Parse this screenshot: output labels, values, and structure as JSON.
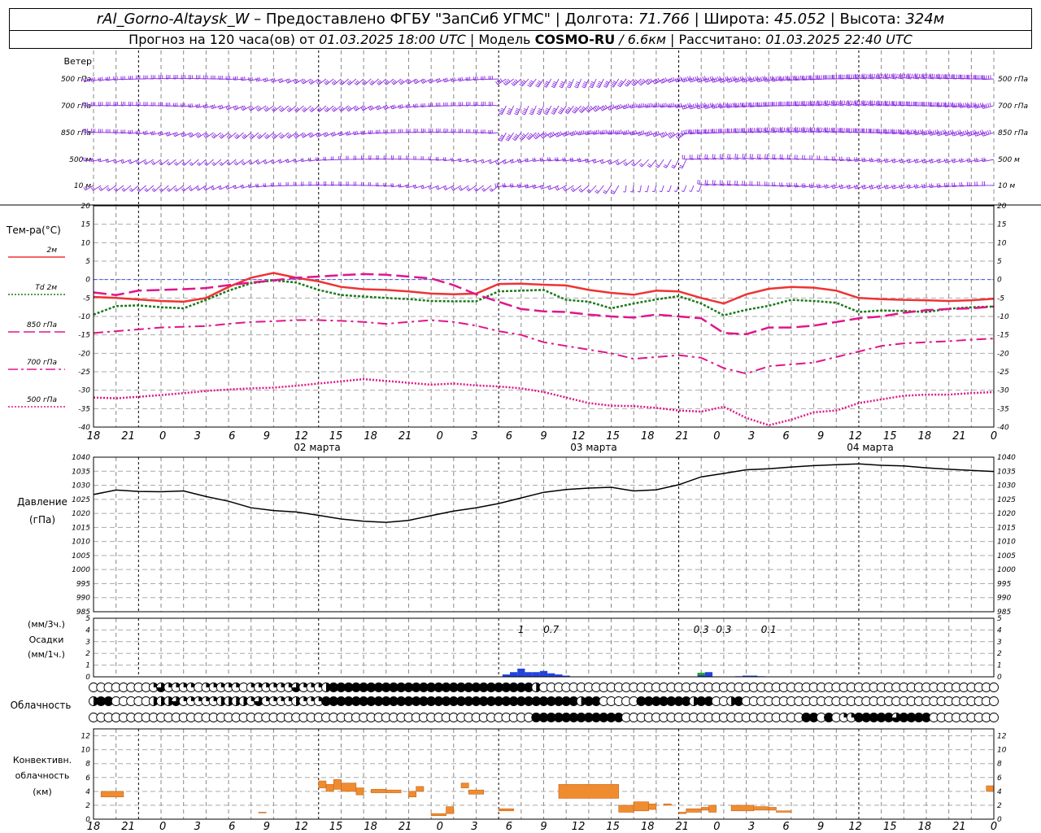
{
  "header": {
    "station": "rAl_Gorno-Altaysk_W",
    "dash": " – ",
    "provider": "Предоставлено ФГБУ \"ЗапСиб УГМС\"",
    "sep": " | ",
    "lon_label": "Долгота: ",
    "lon_value": "71.766",
    "lat_label": "Широта: ",
    "lat_value": "45.052",
    "alt_label": "Высота: ",
    "alt_value": "324м",
    "forecast_label": "Прогноз на 120 часа(ов) от ",
    "forecast_from": "01.03.2025 18:00 UTC",
    "model_label": "Модель ",
    "model_name": "COSMO-RU",
    "model_res": " / 6.6км",
    "calc_label": "Рассчитано: ",
    "calc_time": "01.03.2025 22:40 UTC"
  },
  "x_axis": {
    "ticks": [
      "18",
      "21",
      "0",
      "3",
      "6",
      "9",
      "12",
      "15",
      "18",
      "21",
      "0",
      "3",
      "6",
      "9",
      "12",
      "15",
      "18",
      "21",
      "0",
      "3",
      "6",
      "9",
      "12",
      "15",
      "18",
      "21",
      "0"
    ],
    "dates": [
      "02 марта",
      "03 марта",
      "04 марта"
    ]
  },
  "wind_panel": {
    "title": "Ветер",
    "levels": [
      "500 гПа",
      "700 гПа",
      "850 гПа",
      "500 м",
      "10 м"
    ],
    "color": "#8a2be2"
  },
  "temp_panel": {
    "title": "Тем-ра(°С)",
    "legend": [
      {
        "label": "2м",
        "color": "#ee3333",
        "style": "solid"
      },
      {
        "label": "Td  2м",
        "color": "#1a7a1a",
        "style": "dotted"
      },
      {
        "label": "850 гПа",
        "color": "#e0168a",
        "style": "dashed"
      },
      {
        "label": "700 гПа",
        "color": "#e0168a",
        "style": "dashdot"
      },
      {
        "label": "500 гПа",
        "color": "#e0168a",
        "style": "dotted"
      }
    ],
    "ticks": [
      "20",
      "15",
      "10",
      "5",
      "0",
      "-5",
      "-10",
      "-15",
      "-20",
      "-25",
      "-30",
      "-35",
      "-40"
    ]
  },
  "pressure_panel": {
    "title": "Давление",
    "unit": "(гПа)",
    "ticks": [
      "1040",
      "1035",
      "1030",
      "1025",
      "1020",
      "1015",
      "1010",
      "1005",
      "1000",
      "995",
      "990",
      "985"
    ]
  },
  "precip_panel": {
    "unit3": "(мм/3ч.)",
    "title": "Осадки",
    "unit1": "(мм/1ч.)",
    "ticks": [
      "5",
      "4",
      "3",
      "2",
      "1",
      "0"
    ],
    "labels": [
      "1",
      "0.7",
      "0.3",
      "0.3",
      "0.1"
    ]
  },
  "cloud_panel": {
    "title": "Облачность"
  },
  "conv_panel": {
    "title1": "Конвективн.",
    "title2": "облачность",
    "unit": "(км)",
    "ticks": [
      "12",
      "10",
      "8",
      "6",
      "4",
      "2",
      "0"
    ]
  },
  "chart_data": {
    "type": "line",
    "x_hours_from_start": [
      0,
      3,
      6,
      9,
      12,
      15,
      18,
      21,
      24,
      27,
      30,
      33,
      36,
      39,
      42,
      45,
      48,
      51,
      54,
      57,
      60,
      63,
      66,
      69,
      72,
      75,
      78,
      81,
      84,
      87,
      90,
      93,
      96,
      99,
      102,
      105,
      108,
      111,
      114,
      117,
      120
    ],
    "series": [
      {
        "name": "2м",
        "values": [
          -4.7,
          -5,
          -5.4,
          -5.8,
          -6,
          -5,
          -2,
          0.5,
          1.8,
          0.5,
          -0.5,
          -2,
          -2.6,
          -2.8,
          -3.2,
          -3.8,
          -4,
          -3.8,
          -1.2,
          -1.1,
          -1.4,
          -1.6,
          -2.8,
          -3.6,
          -4.1,
          -3,
          -3.2,
          -5,
          -6.5,
          -4,
          -2.5,
          -2,
          -2.2,
          -3,
          -5,
          -5.3,
          -5.5,
          -5.6,
          -5.8,
          -5.6,
          -5.2
        ]
      },
      {
        "name": "Td 2м",
        "values": [
          -9.5,
          -7.2,
          -7,
          -7.5,
          -7.8,
          -5.5,
          -3,
          -1,
          -0.2,
          -0.8,
          -2.8,
          -4.2,
          -4.6,
          -5,
          -5.3,
          -5.8,
          -5.9,
          -5.9,
          -3.2,
          -3,
          -2.8,
          -5.5,
          -6,
          -7.8,
          -6.5,
          -5.4,
          -4.5,
          -6.5,
          -9.7,
          -8.2,
          -7.1,
          -5.5,
          -5.8,
          -6.3,
          -8.8,
          -8.4,
          -8.5,
          -8.8,
          -7.9,
          -7.5,
          -7.3
        ]
      },
      {
        "name": "850 гПа",
        "values": [
          -3.5,
          -4.2,
          -3,
          -2.8,
          -2.6,
          -2.3,
          -1.5,
          -0.8,
          -0.2,
          0.5,
          0.8,
          1.2,
          1.5,
          1.3,
          0.8,
          0.3,
          -1.5,
          -4,
          -6,
          -8,
          -8.6,
          -8.8,
          -9.5,
          -10,
          -10.3,
          -9.5,
          -10,
          -10.5,
          -14.5,
          -14.8,
          -13,
          -13,
          -12.5,
          -11.5,
          -10.5,
          -10,
          -9,
          -8.3,
          -8,
          -7.8,
          -7.3
        ]
      },
      {
        "name": "700 гПа",
        "values": [
          -14.5,
          -14,
          -13.5,
          -13,
          -12.8,
          -12.6,
          -12,
          -11.5,
          -11.3,
          -11,
          -11,
          -11.2,
          -11.5,
          -12,
          -11.5,
          -11,
          -11.5,
          -12.5,
          -14,
          -15,
          -17,
          -18,
          -19,
          -20,
          -21.5,
          -21,
          -20.5,
          -21.2,
          -24,
          -25.5,
          -23.5,
          -23,
          -22.5,
          -21,
          -19.5,
          -18,
          -17.3,
          -17,
          -16.7,
          -16.3,
          -16
        ]
      },
      {
        "name": "500 гПа",
        "values": [
          -32,
          -32.2,
          -31.8,
          -31.3,
          -30.8,
          -30.2,
          -29.8,
          -29.5,
          -29.3,
          -28.8,
          -28.2,
          -27.6,
          -27,
          -27.5,
          -28,
          -28.5,
          -28.2,
          -28.7,
          -29,
          -29.5,
          -30.5,
          -32,
          -33.5,
          -34.2,
          -34.3,
          -34.8,
          -35.5,
          -35.8,
          -34.5,
          -37.5,
          -39.5,
          -38,
          -36,
          -35.5,
          -33.5,
          -32.5,
          -31.5,
          -31.2,
          -31.2,
          -30.8,
          -30.5
        ]
      },
      {
        "name": "Давление",
        "values": [
          1026.7,
          1028.3,
          1027.8,
          1027.7,
          1028,
          1026,
          1024.3,
          1022,
          1021,
          1020.5,
          1019.3,
          1018,
          1017.2,
          1016.8,
          1017.5,
          1019.2,
          1020.8,
          1022,
          1023.5,
          1025.5,
          1027.5,
          1028.5,
          1029,
          1029.3,
          1028,
          1028.4,
          1030.2,
          1033,
          1034.2,
          1035.5,
          1035.9,
          1036.5,
          1037,
          1037.3,
          1037.6,
          1037.1,
          1036.9,
          1036.2,
          1035.7,
          1035.3,
          1034.9
        ]
      }
    ],
    "precip_bars": [
      {
        "hour": 55,
        "value": 0.2
      },
      {
        "hour": 56,
        "value": 0.4
      },
      {
        "hour": 57,
        "value": 0.7
      },
      {
        "hour": 58,
        "value": 0.4
      },
      {
        "hour": 59,
        "value": 0.4
      },
      {
        "hour": 60,
        "value": 0.5
      },
      {
        "hour": 61,
        "value": 0.3
      },
      {
        "hour": 62,
        "value": 0.2
      },
      {
        "hour": 63,
        "value": 0.1
      },
      {
        "hour": 81,
        "value": 0.3
      },
      {
        "hour": 82,
        "value": 0.4
      },
      {
        "hour": 86,
        "value": 0.05
      },
      {
        "hour": 87,
        "value": 0.1
      },
      {
        "hour": 88,
        "value": 0.1
      },
      {
        "hour": 89,
        "value": 0.05
      }
    ],
    "precip_3h_labels": [
      {
        "hour": 57,
        "text": "1"
      },
      {
        "hour": 61,
        "text": "0.7"
      },
      {
        "hour": 81,
        "text": "0.3"
      },
      {
        "hour": 84,
        "text": "0.3"
      },
      {
        "hour": 90,
        "text": "0.1"
      }
    ],
    "cloud_rows": {
      "upper": "OOOOOOOOqtqqqqOqqqqqOqqqqqqtqqqhFFFFFFFFFFFFFFFFFFFFFFFFFFFhOOOOOOOOOOOOOOOOOOOOOOOOOOOOOOOOOOOOOOOOOOOOOOOOOOOOOOOOOOOOOOOOOOOOOOOOOOOOOOOOOOOOqqtqqqqqqqhhq",
      "middle": "hFFOOOOOhhhtqqqqqhhhhqtqqqqhqqqFFFFFFFFFFFFFFFFFFFFFFFFFFFFFFFFFFhFFOOOOOFFFFFFFhFFOOhFOOOOOOOOOOOOOOOOOOOOOOOOOOOOOOOOOOOOOOOOOOOOOOOOOOOOOOOOOOOOOhFhFFFFFFFFF",
      "lower": "OOOOOOOOOOOOOOOOOOOOOOOOOOOOOOOOOOOOOOOOOOOOOOOOOOOOOOOOOOOFFFFFFFFFFFFOOOOOOOOOOOOOOOOOOOOOOOOFFOFOqqFFFFFtFFFFOOOOOOOOOOOOOOOOOOOOOOOOOOOOOOOOOOOOOOOOOOOOO"
    },
    "conv_bars": [
      {
        "h0": 1,
        "h1": 4,
        "lo": 3.2,
        "hi": 4.0
      },
      {
        "h0": 22,
        "h1": 23,
        "lo": 0.9,
        "hi": 1.0
      },
      {
        "h0": 30,
        "h1": 31,
        "lo": 4.5,
        "hi": 5.5
      },
      {
        "h0": 31,
        "h1": 32,
        "lo": 4.0,
        "hi": 5.0
      },
      {
        "h0": 32,
        "h1": 33,
        "lo": 4.3,
        "hi": 5.7
      },
      {
        "h0": 33,
        "h1": 35,
        "lo": 4.0,
        "hi": 5.2
      },
      {
        "h0": 35,
        "h1": 36,
        "lo": 3.5,
        "hi": 4.5
      },
      {
        "h0": 37,
        "h1": 39,
        "lo": 3.8,
        "hi": 4.3
      },
      {
        "h0": 39,
        "h1": 41,
        "lo": 3.8,
        "hi": 4.2
      },
      {
        "h0": 42,
        "h1": 43,
        "lo": 3.2,
        "hi": 4.0
      },
      {
        "h0": 43,
        "h1": 44,
        "lo": 4.0,
        "hi": 4.7
      },
      {
        "h0": 45,
        "h1": 47,
        "lo": 0.5,
        "hi": 0.8
      },
      {
        "h0": 47,
        "h1": 48,
        "lo": 0.8,
        "hi": 1.8
      },
      {
        "h0": 49,
        "h1": 50,
        "lo": 4.5,
        "hi": 5.2
      },
      {
        "h0": 50,
        "h1": 52,
        "lo": 3.6,
        "hi": 4.2
      },
      {
        "h0": 54,
        "h1": 56,
        "lo": 1.2,
        "hi": 1.5
      },
      {
        "h0": 62,
        "h1": 70,
        "lo": 3.0,
        "hi": 5.0
      },
      {
        "h0": 70,
        "h1": 72,
        "lo": 1.0,
        "hi": 2.0
      },
      {
        "h0": 72,
        "h1": 74,
        "lo": 1.2,
        "hi": 2.5
      },
      {
        "h0": 74,
        "h1": 75,
        "lo": 1.4,
        "hi": 2.2
      },
      {
        "h0": 76,
        "h1": 77,
        "lo": 2.0,
        "hi": 2.2
      },
      {
        "h0": 78,
        "h1": 79,
        "lo": 0.8,
        "hi": 1.0
      },
      {
        "h0": 79,
        "h1": 81,
        "lo": 1.0,
        "hi": 1.5
      },
      {
        "h0": 81,
        "h1": 82,
        "lo": 1.3,
        "hi": 1.7
      },
      {
        "h0": 82,
        "h1": 83,
        "lo": 1.0,
        "hi": 2.0
      },
      {
        "h0": 85,
        "h1": 88,
        "lo": 1.2,
        "hi": 2.0
      },
      {
        "h0": 88,
        "h1": 90,
        "lo": 1.3,
        "hi": 1.8
      },
      {
        "h0": 90,
        "h1": 91,
        "lo": 1.3,
        "hi": 1.7
      },
      {
        "h0": 91,
        "h1": 93,
        "lo": 1.0,
        "hi": 1.2
      },
      {
        "h0": 119,
        "h1": 120,
        "lo": 4.0,
        "hi": 4.8
      }
    ],
    "ylim_temp": [
      -40,
      20
    ],
    "ylim_pressure": [
      985,
      1040
    ],
    "ylim_precip": [
      0,
      5
    ],
    "ylim_conv": [
      0,
      13
    ]
  }
}
